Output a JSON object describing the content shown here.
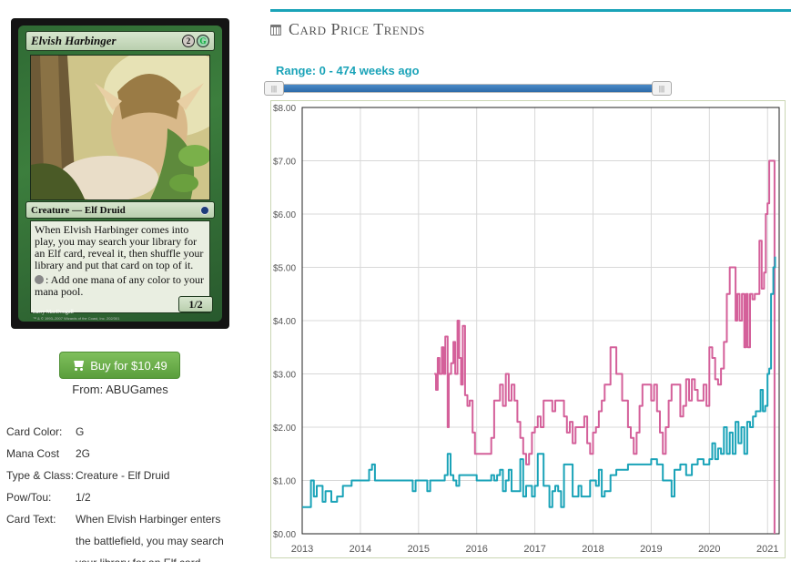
{
  "card": {
    "name": "Elvish Harbinger",
    "mana_symbols": [
      "2",
      "G"
    ],
    "type_line": "Creature — Elf Druid",
    "rules_text": "When Elvish Harbinger comes into play, you may search your library for an Elf card, reveal it, then shuffle your library and put that card on top of it.",
    "ability_text": ": Add one mana of any color to your mana pool.",
    "pt": "1/2",
    "artist": "Larry MacDougall",
    "copyright": "™ & © 1993–2007 Wizards of the Coast, Inc. 202/301"
  },
  "buy": {
    "label": "Buy for $10.49",
    "from": "From: ABUGames"
  },
  "info": [
    {
      "label": "Card Color:",
      "value": "G"
    },
    {
      "label": "Mana Cost",
      "value": "2G"
    },
    {
      "label": "Type & Class:",
      "value": "Creature - Elf Druid"
    },
    {
      "label": "Pow/Tou:",
      "value": "1/2"
    },
    {
      "label": "Card Text:",
      "value": "When Elvish Harbinger enters the battlefield, you may search your library for an Elf card,"
    }
  ],
  "price_trends": {
    "title": "Card Price Trends",
    "range_label": "Range: 0 - 474 weeks ago",
    "handle_glyph": "|||"
  },
  "colors": {
    "accent": "#1aa3b8",
    "pink": "#d4609a",
    "teal": "#1aa3b8"
  },
  "chart_data": {
    "type": "line",
    "title": "",
    "xlabel": "",
    "ylabel": "",
    "ylim": [
      0,
      8
    ],
    "xlim": [
      2013.0,
      2021.2
    ],
    "y_ticks": [
      "$0.00",
      "$1.00",
      "$2.00",
      "$3.00",
      "$4.00",
      "$5.00",
      "$6.00",
      "$7.00",
      "$8.00"
    ],
    "x_ticks": [
      "2013",
      "2014",
      "2015",
      "2016",
      "2017",
      "2018",
      "2019",
      "2020",
      "2021"
    ],
    "grid": true,
    "series": [
      {
        "color": "#d4609a",
        "points": [
          [
            2015.27,
            3.0
          ],
          [
            2015.3,
            2.7
          ],
          [
            2015.33,
            3.3
          ],
          [
            2015.36,
            3.0
          ],
          [
            2015.4,
            3.5
          ],
          [
            2015.43,
            3.0
          ],
          [
            2015.46,
            3.7
          ],
          [
            2015.5,
            2.0
          ],
          [
            2015.52,
            3.0
          ],
          [
            2015.56,
            3.2
          ],
          [
            2015.6,
            3.6
          ],
          [
            2015.63,
            3.0
          ],
          [
            2015.67,
            4.0
          ],
          [
            2015.7,
            3.3
          ],
          [
            2015.73,
            2.8
          ],
          [
            2015.76,
            3.9
          ],
          [
            2015.8,
            2.6
          ],
          [
            2015.84,
            2.4
          ],
          [
            2015.88,
            2.5
          ],
          [
            2015.93,
            1.9
          ],
          [
            2015.97,
            1.5
          ],
          [
            2016.2,
            1.5
          ],
          [
            2016.25,
            1.8
          ],
          [
            2016.3,
            2.5
          ],
          [
            2016.35,
            2.5
          ],
          [
            2016.4,
            2.8
          ],
          [
            2016.45,
            2.4
          ],
          [
            2016.5,
            3.0
          ],
          [
            2016.55,
            2.5
          ],
          [
            2016.6,
            2.8
          ],
          [
            2016.65,
            2.5
          ],
          [
            2016.7,
            2.1
          ],
          [
            2016.75,
            1.8
          ],
          [
            2016.8,
            1.5
          ],
          [
            2016.85,
            1.3
          ],
          [
            2016.9,
            1.5
          ],
          [
            2016.95,
            1.9
          ],
          [
            2017.0,
            2.0
          ],
          [
            2017.05,
            2.2
          ],
          [
            2017.1,
            2.0
          ],
          [
            2017.15,
            2.5
          ],
          [
            2017.25,
            2.5
          ],
          [
            2017.3,
            2.3
          ],
          [
            2017.35,
            2.5
          ],
          [
            2017.45,
            2.5
          ],
          [
            2017.5,
            2.2
          ],
          [
            2017.55,
            1.9
          ],
          [
            2017.6,
            2.1
          ],
          [
            2017.65,
            1.7
          ],
          [
            2017.7,
            2.0
          ],
          [
            2017.8,
            2.0
          ],
          [
            2017.85,
            2.2
          ],
          [
            2017.9,
            1.7
          ],
          [
            2017.95,
            1.5
          ],
          [
            2018.0,
            1.9
          ],
          [
            2018.05,
            2.0
          ],
          [
            2018.1,
            2.3
          ],
          [
            2018.15,
            2.5
          ],
          [
            2018.2,
            2.8
          ],
          [
            2018.3,
            3.5
          ],
          [
            2018.35,
            3.5
          ],
          [
            2018.4,
            3.0
          ],
          [
            2018.5,
            2.5
          ],
          [
            2018.6,
            2.0
          ],
          [
            2018.65,
            1.8
          ],
          [
            2018.7,
            1.5
          ],
          [
            2018.75,
            1.9
          ],
          [
            2018.8,
            2.4
          ],
          [
            2018.85,
            2.8
          ],
          [
            2018.95,
            2.8
          ],
          [
            2019.0,
            2.5
          ],
          [
            2019.05,
            2.8
          ],
          [
            2019.1,
            2.3
          ],
          [
            2019.15,
            1.9
          ],
          [
            2019.2,
            1.5
          ],
          [
            2019.25,
            2.0
          ],
          [
            2019.3,
            2.5
          ],
          [
            2019.35,
            2.8
          ],
          [
            2019.45,
            2.8
          ],
          [
            2019.5,
            2.2
          ],
          [
            2019.55,
            2.4
          ],
          [
            2019.6,
            2.9
          ],
          [
            2019.65,
            2.5
          ],
          [
            2019.7,
            2.9
          ],
          [
            2019.75,
            2.7
          ],
          [
            2019.8,
            2.5
          ],
          [
            2019.85,
            2.5
          ],
          [
            2019.9,
            2.8
          ],
          [
            2019.95,
            2.4
          ],
          [
            2020.0,
            3.5
          ],
          [
            2020.05,
            3.3
          ],
          [
            2020.1,
            2.9
          ],
          [
            2020.15,
            2.8
          ],
          [
            2020.2,
            3.1
          ],
          [
            2020.25,
            3.6
          ],
          [
            2020.3,
            4.5
          ],
          [
            2020.35,
            5.0
          ],
          [
            2020.42,
            5.0
          ],
          [
            2020.45,
            4.0
          ],
          [
            2020.48,
            4.5
          ],
          [
            2020.52,
            4.0
          ],
          [
            2020.56,
            4.5
          ],
          [
            2020.6,
            3.5
          ],
          [
            2020.63,
            4.5
          ],
          [
            2020.66,
            3.5
          ],
          [
            2020.7,
            4.5
          ],
          [
            2020.74,
            4.4
          ],
          [
            2020.78,
            4.5
          ],
          [
            2020.82,
            4.5
          ],
          [
            2020.86,
            5.5
          ],
          [
            2020.9,
            4.6
          ],
          [
            2020.94,
            4.9
          ],
          [
            2020.97,
            6.0
          ],
          [
            2021.0,
            6.2
          ],
          [
            2021.03,
            7.0
          ],
          [
            2021.08,
            7.0
          ],
          [
            2021.12,
            0.0
          ]
        ]
      },
      {
        "color": "#1aa3b8",
        "points": [
          [
            2013.0,
            0.5
          ],
          [
            2013.1,
            0.5
          ],
          [
            2013.15,
            1.0
          ],
          [
            2013.2,
            0.7
          ],
          [
            2013.25,
            0.9
          ],
          [
            2013.3,
            0.9
          ],
          [
            2013.35,
            0.6
          ],
          [
            2013.4,
            0.8
          ],
          [
            2013.5,
            0.6
          ],
          [
            2013.6,
            0.7
          ],
          [
            2013.7,
            0.9
          ],
          [
            2013.8,
            0.9
          ],
          [
            2013.85,
            1.0
          ],
          [
            2014.0,
            1.0
          ],
          [
            2014.1,
            1.0
          ],
          [
            2014.15,
            1.2
          ],
          [
            2014.2,
            1.3
          ],
          [
            2014.25,
            1.0
          ],
          [
            2014.5,
            1.0
          ],
          [
            2014.8,
            1.0
          ],
          [
            2014.9,
            0.8
          ],
          [
            2014.95,
            1.0
          ],
          [
            2015.1,
            1.0
          ],
          [
            2015.15,
            0.8
          ],
          [
            2015.2,
            1.0
          ],
          [
            2015.25,
            1.0
          ],
          [
            2015.3,
            1.0
          ],
          [
            2015.4,
            1.0
          ],
          [
            2015.45,
            1.1
          ],
          [
            2015.5,
            1.5
          ],
          [
            2015.55,
            1.1
          ],
          [
            2015.6,
            1.0
          ],
          [
            2015.65,
            0.9
          ],
          [
            2015.7,
            1.1
          ],
          [
            2015.9,
            1.1
          ],
          [
            2016.0,
            1.0
          ],
          [
            2016.2,
            1.0
          ],
          [
            2016.25,
            1.1
          ],
          [
            2016.3,
            1.0
          ],
          [
            2016.35,
            1.1
          ],
          [
            2016.4,
            1.2
          ],
          [
            2016.45,
            0.8
          ],
          [
            2016.5,
            1.0
          ],
          [
            2016.55,
            1.2
          ],
          [
            2016.6,
            0.8
          ],
          [
            2016.7,
            0.8
          ],
          [
            2016.75,
            1.4
          ],
          [
            2016.8,
            0.7
          ],
          [
            2016.85,
            0.9
          ],
          [
            2016.9,
            0.9
          ],
          [
            2016.95,
            0.7
          ],
          [
            2017.0,
            0.9
          ],
          [
            2017.05,
            1.5
          ],
          [
            2017.1,
            1.5
          ],
          [
            2017.15,
            0.9
          ],
          [
            2017.2,
            0.9
          ],
          [
            2017.25,
            0.5
          ],
          [
            2017.3,
            0.8
          ],
          [
            2017.35,
            0.9
          ],
          [
            2017.4,
            0.8
          ],
          [
            2017.45,
            0.5
          ],
          [
            2017.5,
            1.3
          ],
          [
            2017.6,
            1.3
          ],
          [
            2017.65,
            0.7
          ],
          [
            2017.7,
            0.7
          ],
          [
            2017.75,
            0.9
          ],
          [
            2017.8,
            0.7
          ],
          [
            2017.9,
            0.7
          ],
          [
            2017.95,
            1.0
          ],
          [
            2018.0,
            1.0
          ],
          [
            2018.05,
            0.9
          ],
          [
            2018.1,
            1.2
          ],
          [
            2018.15,
            0.7
          ],
          [
            2018.2,
            0.8
          ],
          [
            2018.3,
            1.1
          ],
          [
            2018.4,
            1.2
          ],
          [
            2018.6,
            1.3
          ],
          [
            2018.8,
            1.3
          ],
          [
            2019.0,
            1.4
          ],
          [
            2019.1,
            1.3
          ],
          [
            2019.2,
            1.0
          ],
          [
            2019.3,
            1.0
          ],
          [
            2019.35,
            0.7
          ],
          [
            2019.4,
            1.2
          ],
          [
            2019.5,
            1.3
          ],
          [
            2019.6,
            1.1
          ],
          [
            2019.7,
            1.3
          ],
          [
            2019.8,
            1.4
          ],
          [
            2019.9,
            1.3
          ],
          [
            2020.0,
            1.4
          ],
          [
            2020.05,
            1.7
          ],
          [
            2020.1,
            1.4
          ],
          [
            2020.15,
            1.6
          ],
          [
            2020.2,
            1.5
          ],
          [
            2020.25,
            2.0
          ],
          [
            2020.3,
            1.5
          ],
          [
            2020.35,
            1.9
          ],
          [
            2020.4,
            1.5
          ],
          [
            2020.45,
            2.1
          ],
          [
            2020.5,
            1.7
          ],
          [
            2020.55,
            2.0
          ],
          [
            2020.6,
            1.5
          ],
          [
            2020.65,
            2.1
          ],
          [
            2020.7,
            2.0
          ],
          [
            2020.75,
            2.2
          ],
          [
            2020.8,
            2.3
          ],
          [
            2020.85,
            2.3
          ],
          [
            2020.88,
            2.7
          ],
          [
            2020.92,
            2.3
          ],
          [
            2020.96,
            2.4
          ],
          [
            2021.0,
            3.0
          ],
          [
            2021.03,
            3.1
          ],
          [
            2021.06,
            4.5
          ],
          [
            2021.1,
            5.0
          ],
          [
            2021.13,
            5.2
          ]
        ]
      }
    ]
  }
}
